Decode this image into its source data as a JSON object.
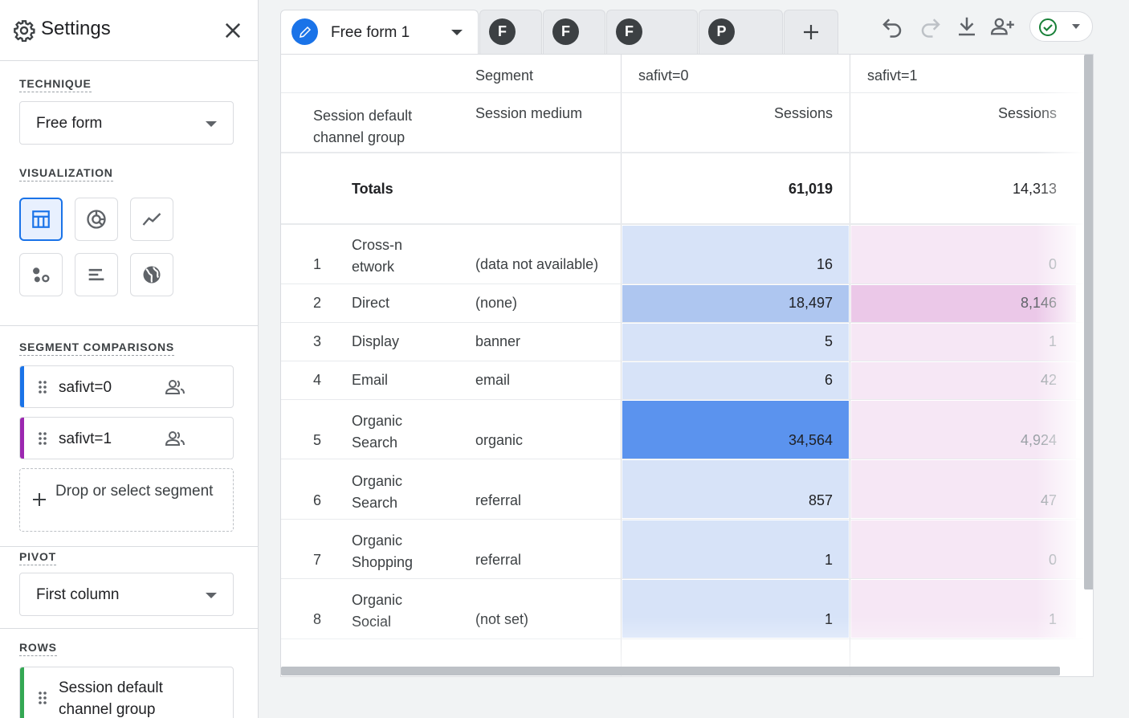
{
  "sidebar": {
    "title": "Settings",
    "technique": {
      "label": "TECHNIQUE",
      "value": "Free form"
    },
    "visualization": {
      "label": "VISUALIZATION",
      "selected": "table"
    },
    "segments": {
      "label": "SEGMENT COMPARISONS",
      "items": [
        {
          "name": "safivt=0",
          "color": "#1a73e8"
        },
        {
          "name": "safivt=1",
          "color": "#9c27b0"
        }
      ],
      "drop_label": "Drop or select segment"
    },
    "pivot": {
      "label": "PIVOT",
      "value": "First column"
    },
    "rows": {
      "label": "ROWS",
      "item": "Session default channel group"
    }
  },
  "tabs": {
    "active": "Free form 1",
    "others": [
      "F",
      "F",
      "F",
      "P"
    ]
  },
  "table": {
    "segment_header": "Segment",
    "dim1_header": "Session default channel group",
    "dim2_header": "Session medium",
    "seg0_name": "safivt=0",
    "seg1_name": "safivt=1",
    "metric": "Sessions",
    "totals_label": "Totals",
    "totals": [
      "61,019",
      "14,313"
    ],
    "rows": [
      {
        "idx": "1",
        "channel": "Cross-n etwork",
        "medium": "(data not available)",
        "s0": "16",
        "s1": "0"
      },
      {
        "idx": "2",
        "channel": "Direct",
        "medium": "(none)",
        "s0": "18,497",
        "s1": "8,146"
      },
      {
        "idx": "3",
        "channel": "Display",
        "medium": "banner",
        "s0": "5",
        "s1": "1"
      },
      {
        "idx": "4",
        "channel": "Email",
        "medium": "email",
        "s0": "6",
        "s1": "42"
      },
      {
        "idx": "5",
        "channel": "Organic Search",
        "medium": "organic",
        "s0": "34,564",
        "s1": "4,924"
      },
      {
        "idx": "6",
        "channel": "Organic Search",
        "medium": "referral",
        "s0": "857",
        "s1": "47"
      },
      {
        "idx": "7",
        "channel": "Organic Shopping",
        "medium": "referral",
        "s0": "1",
        "s1": "0"
      },
      {
        "idx": "8",
        "channel": "Organic Social",
        "medium": "(not set)",
        "s0": "1",
        "s1": "1"
      }
    ],
    "heat_colors": {
      "s0": [
        "#d7e3f8",
        "#aec6f0",
        "#d7e3f8",
        "#d7e3f8",
        "#5b93ee",
        "#d7e3f8",
        "#d7e3f8",
        "#d7e3f8"
      ],
      "s1": [
        "#f6e7f5",
        "#ebc8e8",
        "#f6e7f5",
        "#f6e7f5",
        "#f6e7f5",
        "#f6e7f5",
        "#f6e7f5",
        "#f6e7f5"
      ]
    }
  }
}
